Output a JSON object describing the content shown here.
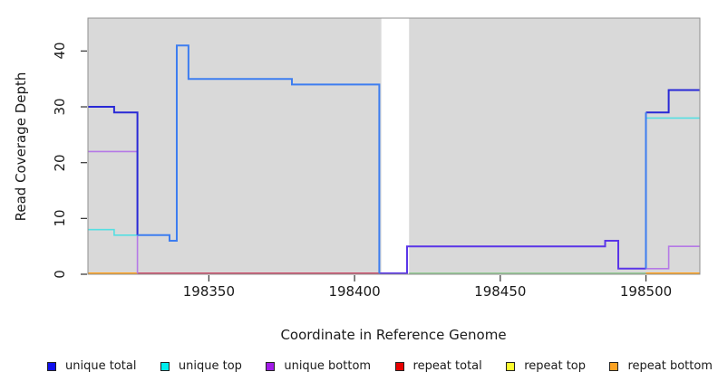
{
  "chart_data": {
    "type": "line",
    "subtype": "step-coverage-plot",
    "title": "",
    "xlabel": "Coordinate in Reference Genome",
    "ylabel": "Read Coverage Depth",
    "xlim": [
      198308.5,
      198518.5
    ],
    "ylim": [
      0,
      45.9
    ],
    "x_ticks": [
      198350,
      198400,
      198450,
      198500
    ],
    "y_ticks": [
      0,
      10,
      20,
      30,
      40
    ],
    "grid": false,
    "panel_bg": "#d9d9d9",
    "panel_border": "#8f8f8f",
    "tick_color": "#404040",
    "masked_region": {
      "x0": 198409.2,
      "x1": 198418.7,
      "color": "#ffffff"
    },
    "series": [
      {
        "name": "unique total",
        "color": "#1010ee",
        "step_x": [
          198308.5,
          198317.5,
          198325.5,
          198336.5,
          198339,
          198343,
          198378.5,
          198408.5,
          198418,
          198486,
          198490.5,
          198500,
          198507.8
        ],
        "step_y": [
          30,
          29,
          7,
          6,
          41,
          35,
          34,
          0,
          5,
          6,
          1,
          29,
          33
        ]
      },
      {
        "name": "unique top",
        "color": "#00eeee",
        "step_x": [
          198308.5,
          198317.5,
          198336.5,
          198339,
          198343,
          198378.5,
          198408.5,
          198500
        ],
        "step_y": [
          8,
          7,
          6,
          41,
          35,
          34,
          0,
          28
        ]
      },
      {
        "name": "unique bottom",
        "color": "#a21be8",
        "step_x": [
          198308.5,
          198325.5,
          198418,
          198486,
          198490.5,
          198500,
          198507.8
        ],
        "step_y": [
          22,
          0,
          5,
          6,
          1,
          1,
          5
        ]
      },
      {
        "name": "repeat total",
        "color": "#e80000",
        "step_x": [
          198308.5
        ],
        "step_y": [
          0
        ]
      },
      {
        "name": "repeat top",
        "color": "#fcfc30",
        "step_x": [
          198308.5
        ],
        "step_y": [
          0
        ]
      },
      {
        "name": "repeat bottom",
        "color": "#fca323",
        "step_x": [
          198308.5
        ],
        "step_y": [
          0
        ]
      }
    ],
    "visible_segments": [
      {
        "name": "baseline-orange-left",
        "color": "#ffa426",
        "width": 2,
        "points": [
          [
            198308.5,
            0
          ],
          [
            198325.5,
            0
          ]
        ]
      },
      {
        "name": "baseline-crimson-mid",
        "color": "#cc5570",
        "width": 2,
        "points": [
          [
            198325.5,
            0
          ],
          [
            198408.5,
            0
          ]
        ]
      },
      {
        "name": "baseline-green-right",
        "color": "#96cb96",
        "width": 2,
        "points": [
          [
            198418.7,
            0
          ],
          [
            198500,
            0
          ]
        ]
      },
      {
        "name": "baseline-orange-right",
        "color": "#ffa426",
        "width": 2,
        "points": [
          [
            198500,
            0
          ],
          [
            198518.5,
            0
          ]
        ]
      },
      {
        "name": "unique-bottom-left",
        "color": "#b579e6",
        "width": 1.6,
        "points": [
          [
            198308.5,
            22
          ],
          [
            198325.5,
            22
          ],
          [
            198325.5,
            0
          ]
        ]
      },
      {
        "name": "unique-bottom-right",
        "color": "#b579e6",
        "width": 1.6,
        "points": [
          [
            198500,
            1
          ],
          [
            198507.8,
            1
          ],
          [
            198507.8,
            5
          ],
          [
            198518.5,
            5
          ]
        ]
      },
      {
        "name": "unique-top-left",
        "color": "#55dfe2",
        "width": 1.6,
        "points": [
          [
            198308.5,
            8
          ],
          [
            198317.5,
            8
          ],
          [
            198317.5,
            7
          ],
          [
            198325.5,
            7
          ]
        ]
      },
      {
        "name": "unique-top-right",
        "color": "#55dfe2",
        "width": 1.6,
        "points": [
          [
            198500,
            28
          ],
          [
            198518.5,
            28
          ]
        ]
      },
      {
        "name": "total-bottom-blend-mid",
        "color": "#5a35e8",
        "width": 2,
        "points": [
          [
            198408.5,
            0
          ],
          [
            198418,
            0
          ],
          [
            198418,
            5
          ],
          [
            198486,
            5
          ],
          [
            198486,
            6
          ],
          [
            198490.5,
            6
          ],
          [
            198490.5,
            1
          ],
          [
            198500,
            1
          ]
        ]
      },
      {
        "name": "unique-total-left",
        "color": "#2929d6",
        "width": 2,
        "points": [
          [
            198308.5,
            30
          ],
          [
            198317.5,
            30
          ],
          [
            198317.5,
            29
          ],
          [
            198325.5,
            29
          ],
          [
            198325.5,
            7
          ]
        ]
      },
      {
        "name": "unique-total-right",
        "color": "#2929d6",
        "width": 2,
        "points": [
          [
            198500,
            29
          ],
          [
            198507.8,
            29
          ],
          [
            198507.8,
            33
          ],
          [
            198518.5,
            33
          ]
        ]
      },
      {
        "name": "total-top-blend-rise",
        "color": "#3d7df0",
        "width": 2,
        "points": [
          [
            198500,
            1
          ],
          [
            198500,
            29
          ]
        ]
      },
      {
        "name": "total-top-blend-mid",
        "color": "#3d7df0",
        "width": 2,
        "points": [
          [
            198325.5,
            7
          ],
          [
            198336.5,
            7
          ],
          [
            198336.5,
            6
          ],
          [
            198339,
            6
          ],
          [
            198339,
            41
          ],
          [
            198343,
            41
          ],
          [
            198343,
            35
          ],
          [
            198378.5,
            35
          ],
          [
            198378.5,
            34
          ],
          [
            198408.5,
            34
          ],
          [
            198408.5,
            0
          ]
        ]
      }
    ],
    "legend": [
      {
        "label": "unique total",
        "color": "#1010ee"
      },
      {
        "label": "unique top",
        "color": "#00eeee"
      },
      {
        "label": "unique bottom",
        "color": "#a21be8"
      },
      {
        "label": "repeat total",
        "color": "#e80000"
      },
      {
        "label": "repeat top",
        "color": "#fcfc30"
      },
      {
        "label": "repeat bottom",
        "color": "#fca323"
      }
    ],
    "legend_position": "bottom"
  }
}
